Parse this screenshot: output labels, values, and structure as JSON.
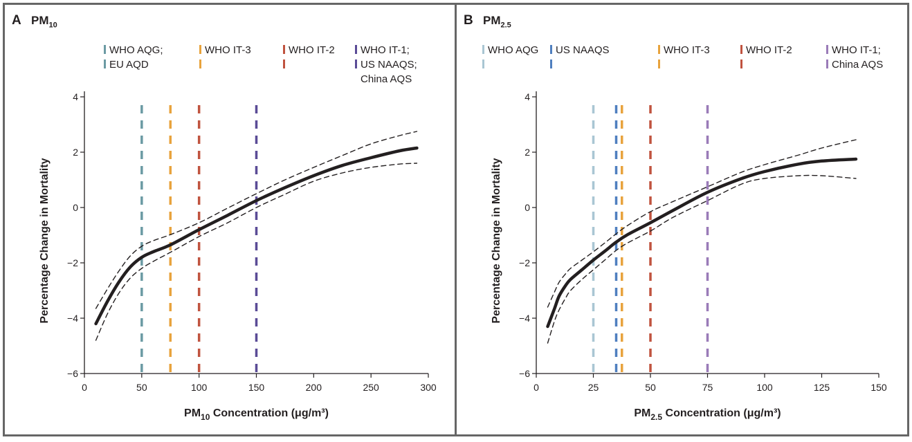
{
  "chart_data": [
    {
      "type": "line",
      "panel_letter": "A",
      "title": "PM",
      "title_sub": "10",
      "xlabel": "PM10 Concentration (μg/m³)",
      "xlabel_parts": {
        "pre": "PM",
        "sub": "10",
        "post": " Concentration (μg/m³)"
      },
      "ylabel": "Percentage Change in Mortality",
      "xlim": [
        0,
        300
      ],
      "ylim": [
        -6,
        4
      ],
      "xticks": [
        0,
        50,
        100,
        150,
        200,
        250,
        300
      ],
      "xtick_labels": [
        "0",
        "50",
        "100",
        "150",
        "200",
        "250",
        "300"
      ],
      "yticks": [
        -6,
        -4,
        -2,
        0,
        2,
        4
      ],
      "ytick_labels": [
        "−6",
        "−4",
        "−2",
        "0",
        "2",
        "4"
      ],
      "grid": false,
      "legend_placement": "top",
      "guidelines": [
        {
          "x": 50,
          "color": "#6b9aa3",
          "lines": [
            "WHO AQG;",
            "EU AQD"
          ]
        },
        {
          "x": 75,
          "color": "#e8a33d",
          "lines": [
            "WHO IT-3",
            ""
          ]
        },
        {
          "x": 100,
          "color": "#c0533f",
          "lines": [
            "WHO IT-2",
            ""
          ]
        },
        {
          "x": 150,
          "color": "#5a4b96",
          "lines": [
            "WHO IT-1;",
            "US NAAQS;",
            "China AQS"
          ]
        }
      ],
      "series": [
        {
          "name": "Estimate",
          "style": "solid",
          "x": [
            10,
            20,
            30,
            40,
            50,
            60,
            75,
            100,
            125,
            150,
            175,
            200,
            225,
            250,
            275,
            290
          ],
          "y": [
            -4.2,
            -3.4,
            -2.7,
            -2.15,
            -1.8,
            -1.6,
            -1.35,
            -0.8,
            -0.28,
            0.25,
            0.72,
            1.15,
            1.52,
            1.8,
            2.05,
            2.15
          ]
        },
        {
          "name": "Upper 95% CI",
          "style": "dashed",
          "x": [
            10,
            20,
            30,
            40,
            50,
            60,
            75,
            100,
            125,
            150,
            175,
            200,
            225,
            250,
            275,
            290
          ],
          "y": [
            -3.65,
            -2.95,
            -2.3,
            -1.75,
            -1.4,
            -1.2,
            -0.98,
            -0.55,
            -0.02,
            0.5,
            1.0,
            1.45,
            1.88,
            2.3,
            2.6,
            2.75
          ]
        },
        {
          "name": "Lower 95% CI",
          "style": "dashed",
          "x": [
            10,
            20,
            30,
            40,
            50,
            60,
            75,
            100,
            125,
            150,
            175,
            200,
            225,
            250,
            275,
            290
          ],
          "y": [
            -4.8,
            -3.85,
            -3.1,
            -2.55,
            -2.2,
            -1.95,
            -1.62,
            -1.05,
            -0.55,
            0.0,
            0.48,
            0.95,
            1.25,
            1.45,
            1.57,
            1.6
          ]
        }
      ]
    },
    {
      "type": "line",
      "panel_letter": "B",
      "title": "PM",
      "title_sub": "2.5",
      "xlabel": "PM2.5 Concentration (μg/m³)",
      "xlabel_parts": {
        "pre": "PM",
        "sub": "2.5",
        "post": " Concentration (μg/m³)"
      },
      "ylabel": "Percentage Change in Mortality",
      "xlim": [
        0,
        150
      ],
      "ylim": [
        -6,
        4
      ],
      "xticks": [
        0,
        25,
        50,
        75,
        100,
        125,
        150
      ],
      "xtick_labels": [
        "0",
        "25",
        "50",
        "75",
        "100",
        "125",
        "150"
      ],
      "yticks": [
        -6,
        -4,
        -2,
        0,
        2,
        4
      ],
      "ytick_labels": [
        "−6",
        "−4",
        "−2",
        "0",
        "2",
        "4"
      ],
      "grid": false,
      "legend_placement": "top",
      "guidelines": [
        {
          "x": 25,
          "color": "#a9c6d3",
          "lines": [
            "WHO AQG",
            ""
          ]
        },
        {
          "x": 35,
          "color": "#4f7fbf",
          "lines": [
            "US NAAQS",
            ""
          ]
        },
        {
          "x": 37.5,
          "color": "#e8a33d",
          "lines": [
            "WHO IT-3",
            ""
          ]
        },
        {
          "x": 50,
          "color": "#c0533f",
          "lines": [
            "WHO IT-2",
            ""
          ]
        },
        {
          "x": 75,
          "color": "#9a7bb8",
          "lines": [
            "WHO IT-1;",
            "China AQS"
          ]
        }
      ],
      "series": [
        {
          "name": "Estimate",
          "style": "solid",
          "x": [
            5,
            8,
            10,
            13,
            15,
            20,
            25,
            30,
            35,
            40,
            50,
            60,
            75,
            90,
            100,
            115,
            125,
            140
          ],
          "y": [
            -4.3,
            -3.65,
            -3.2,
            -2.8,
            -2.6,
            -2.25,
            -1.9,
            -1.58,
            -1.25,
            -0.98,
            -0.55,
            -0.1,
            0.55,
            1.05,
            1.3,
            1.57,
            1.68,
            1.75
          ]
        },
        {
          "name": "Upper 95% CI",
          "style": "dashed",
          "x": [
            5,
            8,
            10,
            13,
            15,
            20,
            25,
            30,
            35,
            40,
            50,
            60,
            75,
            90,
            100,
            115,
            125,
            140
          ],
          "y": [
            -3.6,
            -3.05,
            -2.7,
            -2.38,
            -2.2,
            -1.9,
            -1.6,
            -1.28,
            -0.95,
            -0.65,
            -0.15,
            0.22,
            0.75,
            1.28,
            1.55,
            1.9,
            2.15,
            2.45
          ]
        },
        {
          "name": "Lower 95% CI",
          "style": "dashed",
          "x": [
            5,
            8,
            10,
            13,
            15,
            20,
            25,
            30,
            35,
            40,
            50,
            60,
            75,
            90,
            100,
            115,
            125,
            140
          ],
          "y": [
            -4.9,
            -4.1,
            -3.7,
            -3.25,
            -3.0,
            -2.6,
            -2.25,
            -1.9,
            -1.55,
            -1.28,
            -0.85,
            -0.35,
            0.25,
            0.85,
            1.05,
            1.15,
            1.15,
            1.05
          ]
        }
      ]
    }
  ]
}
